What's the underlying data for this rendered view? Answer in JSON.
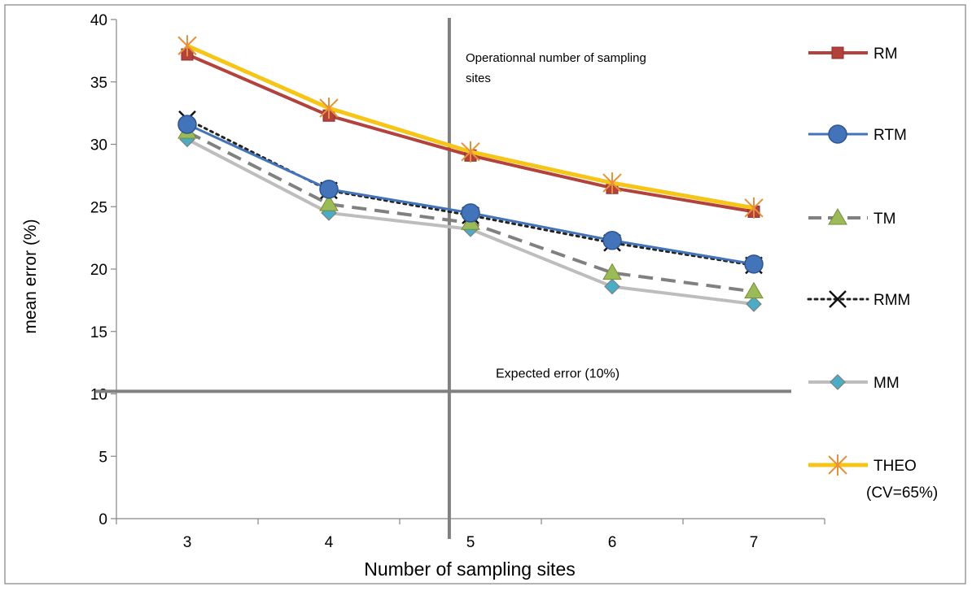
{
  "chart_data": {
    "type": "line",
    "title": "",
    "xlabel": "Number of sampling sites",
    "ylabel": "mean error  (%)",
    "x": [
      3,
      4,
      5,
      6,
      7
    ],
    "ylim": [
      0,
      40
    ],
    "yticks": [
      0,
      5,
      10,
      15,
      20,
      25,
      30,
      35,
      40
    ],
    "grid": false,
    "legend_position": "right",
    "series": [
      {
        "name": "RM",
        "values": [
          37.2,
          32.3,
          29.1,
          26.5,
          24.6
        ],
        "color": "#b3413c",
        "marker": "square",
        "dash": "solid",
        "width": 4
      },
      {
        "name": "RTM",
        "values": [
          31.6,
          26.4,
          24.5,
          22.3,
          20.4
        ],
        "color": "#4373b9",
        "marker": "circle",
        "dash": "solid",
        "width": 3
      },
      {
        "name": "TM",
        "values": [
          31.0,
          25.2,
          23.7,
          19.7,
          18.2
        ],
        "color": "#808080",
        "marker": "triangle",
        "dash": "dashed",
        "width": 4
      },
      {
        "name": "RMM",
        "values": [
          32.0,
          26.3,
          24.3,
          22.1,
          20.3
        ],
        "color": "#222222",
        "marker": "x",
        "dash": "dotted",
        "width": 3
      },
      {
        "name": "MM",
        "values": [
          30.4,
          24.5,
          23.2,
          18.6,
          17.2
        ],
        "color": "#bdbdbd",
        "marker": "diamond",
        "dash": "solid",
        "width": 4
      },
      {
        "name": "THEO\n(CV=65%)",
        "values": [
          37.9,
          32.9,
          29.4,
          26.9,
          24.9
        ],
        "color": "#f5c518",
        "marker": "asterisk",
        "marker_color": "#e8913a",
        "dash": "solid",
        "width": 5
      }
    ],
    "reference_lines": {
      "vertical": {
        "x": 4.85,
        "label": "Operationnal number of sampling sites"
      },
      "horizontal": {
        "y": 10.2,
        "label": "Expected error (10%)"
      }
    }
  }
}
